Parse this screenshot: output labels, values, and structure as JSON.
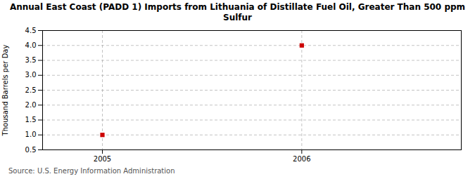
{
  "chart_data": {
    "type": "scatter",
    "title": "Annual East Coast (PADD 1) Imports from Lithuania of Distillate Fuel Oil, Greater Than 500 ppm\nSulfur",
    "ylabel": "Thousand Barrels per Day",
    "caption": "Source: U.S. Energy Information Administration",
    "x": [
      2005,
      2006
    ],
    "values": [
      1.0,
      4.0
    ],
    "color": "#cc0000",
    "marker": "square",
    "xlim": [
      2004.7,
      2006.8
    ],
    "xticks": [
      2005,
      2006
    ],
    "ylim": [
      0.5,
      4.5
    ],
    "yticks": [
      0.5,
      {
        "value": 1.0,
        "label": "1.0"
      },
      1.5,
      {
        "value": 2.0,
        "label": "2.0"
      },
      2.5,
      {
        "value": 3.0,
        "label": "3.0"
      },
      3.5,
      {
        "value": 4.0,
        "label": "4.0"
      },
      4.5
    ],
    "grid": true
  }
}
